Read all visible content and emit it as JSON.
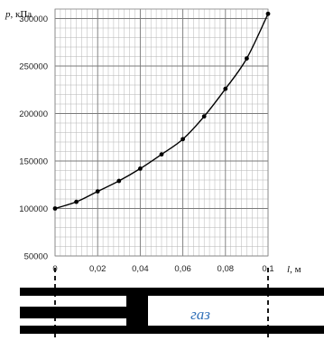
{
  "chart_data": {
    "type": "line",
    "ylabel_var": "p",
    "ylabel_unit": ", кПа",
    "xlabel_var": "l",
    "xlabel_unit": ", м",
    "x": [
      0,
      0.01,
      0.02,
      0.03,
      0.04,
      0.05,
      0.06,
      0.07,
      0.08,
      0.09,
      0.1
    ],
    "series": [
      {
        "values": [
          100000,
          107000,
          118000,
          129000,
          142000,
          157000,
          173000,
          197000,
          226000,
          258000,
          305000
        ]
      }
    ],
    "xlim": [
      0,
      0.1
    ],
    "ylim": [
      50000,
      300000
    ],
    "x_ticks": [
      {
        "value": 0,
        "label": "0"
      },
      {
        "value": 0.02,
        "label": "0,02"
      },
      {
        "value": 0.04,
        "label": "0,04"
      },
      {
        "value": 0.06,
        "label": "0,06"
      },
      {
        "value": 0.08,
        "label": "0,08"
      },
      {
        "value": 0.1,
        "label": "0,1"
      }
    ],
    "y_ticks": [
      {
        "value": 50000,
        "label": "50000"
      },
      {
        "value": 100000,
        "label": "100000"
      },
      {
        "value": 150000,
        "label": "150000"
      },
      {
        "value": 200000,
        "label": "200000"
      },
      {
        "value": 250000,
        "label": "250000"
      },
      {
        "value": 300000,
        "label": "300000"
      }
    ],
    "grid": true,
    "line_color": "#000000",
    "grid_color": "#9a9a9a"
  },
  "diagram": {
    "gas_label": "газ"
  }
}
